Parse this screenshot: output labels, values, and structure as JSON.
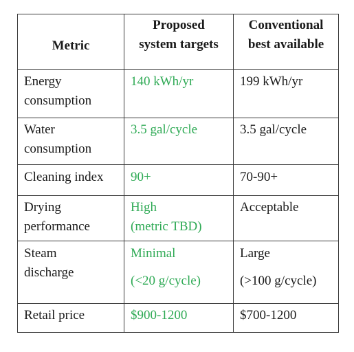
{
  "table": {
    "headers": {
      "metric": "Metric",
      "proposed": [
        "Proposed",
        "system targets"
      ],
      "conventional": [
        "Conventional",
        "best available"
      ]
    },
    "rows": [
      {
        "metric": [
          "Energy",
          "consumption"
        ],
        "proposed": [
          "140 kWh/yr"
        ],
        "conventional": [
          "199 kWh/yr"
        ]
      },
      {
        "metric": [
          "Water",
          "consumption"
        ],
        "proposed": [
          "3.5 gal/cycle"
        ],
        "conventional": [
          "3.5 gal/cycle"
        ]
      },
      {
        "metric": [
          "Cleaning index"
        ],
        "proposed": [
          "90+"
        ],
        "conventional": [
          "70-90+"
        ]
      },
      {
        "metric": [
          "Drying",
          "performance"
        ],
        "proposed": [
          "High",
          "(metric TBD)"
        ],
        "conventional": [
          "Acceptable"
        ]
      },
      {
        "metric": [
          "Steam",
          "discharge"
        ],
        "proposed": [
          "Minimal",
          "(<20 g/cycle)"
        ],
        "conventional": [
          "Large",
          "(>100 g/cycle)"
        ]
      },
      {
        "metric": [
          "Retail price"
        ],
        "proposed": [
          "$900-1200"
        ],
        "conventional": [
          "$700-1200"
        ]
      }
    ]
  },
  "colors": {
    "target_text": "#2faa55",
    "body_text": "#1a1a1a",
    "border": "#3a3a3a"
  }
}
